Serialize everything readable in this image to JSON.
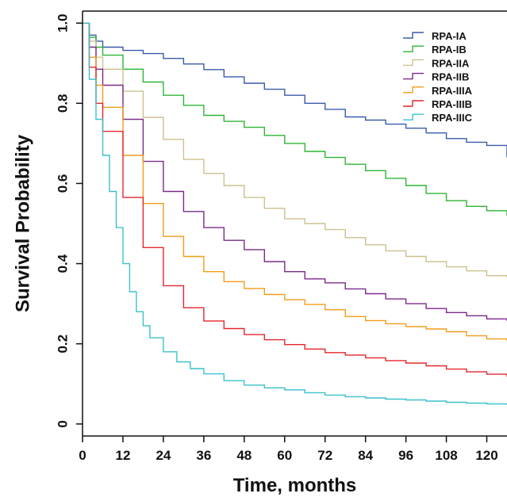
{
  "chart_data": {
    "type": "line",
    "title": "",
    "xlabel": "Time, months",
    "ylabel": "Survival Probability",
    "xlim": [
      0,
      126
    ],
    "ylim": [
      -0.03,
      1.03
    ],
    "xticks": [
      0,
      12,
      24,
      36,
      48,
      60,
      72,
      84,
      96,
      108,
      120
    ],
    "xtick_labels": [
      "0",
      "12",
      "24",
      "36",
      "48",
      "60",
      "72",
      "84",
      "96",
      "108",
      "120"
    ],
    "yticks": [
      0,
      0.2,
      0.4,
      0.6,
      0.8,
      1.0
    ],
    "ytick_labels": [
      "0",
      "0.2",
      "0.4",
      "0.6",
      "0.8",
      "1.0"
    ],
    "grid": false,
    "legend_position": "top-right",
    "series": [
      {
        "name": "RPA-IA",
        "color": "#3a5bab",
        "x": [
          0,
          2,
          4,
          6,
          12,
          18,
          24,
          30,
          36,
          42,
          48,
          54,
          60,
          66,
          72,
          78,
          84,
          90,
          96,
          102,
          108,
          114,
          120,
          126
        ],
        "y": [
          1.0,
          0.97,
          0.955,
          0.94,
          0.932,
          0.924,
          0.912,
          0.898,
          0.884,
          0.866,
          0.85,
          0.835,
          0.82,
          0.8,
          0.785,
          0.766,
          0.758,
          0.748,
          0.738,
          0.726,
          0.712,
          0.703,
          0.695,
          0.665
        ]
      },
      {
        "name": "RPA-IB",
        "color": "#2db534",
        "x": [
          0,
          2,
          4,
          6,
          12,
          18,
          24,
          30,
          36,
          42,
          48,
          54,
          60,
          66,
          72,
          78,
          84,
          90,
          96,
          102,
          108,
          114,
          120,
          126
        ],
        "y": [
          1.0,
          0.965,
          0.94,
          0.92,
          0.885,
          0.853,
          0.82,
          0.795,
          0.77,
          0.755,
          0.74,
          0.72,
          0.7,
          0.68,
          0.665,
          0.648,
          0.632,
          0.613,
          0.595,
          0.575,
          0.557,
          0.543,
          0.532,
          0.52
        ]
      },
      {
        "name": "RPA-IIA",
        "color": "#cdc08f",
        "x": [
          0,
          2,
          4,
          6,
          12,
          18,
          24,
          30,
          36,
          42,
          48,
          54,
          60,
          66,
          72,
          78,
          84,
          90,
          96,
          102,
          108,
          114,
          120,
          126
        ],
        "y": [
          1.0,
          0.955,
          0.915,
          0.885,
          0.83,
          0.765,
          0.71,
          0.66,
          0.625,
          0.595,
          0.565,
          0.538,
          0.512,
          0.5,
          0.485,
          0.465,
          0.447,
          0.432,
          0.418,
          0.405,
          0.392,
          0.382,
          0.37,
          0.365
        ]
      },
      {
        "name": "RPA-IIB",
        "color": "#7b2a8a",
        "x": [
          0,
          2,
          4,
          6,
          12,
          18,
          24,
          30,
          36,
          42,
          48,
          54,
          60,
          66,
          72,
          78,
          84,
          90,
          96,
          102,
          108,
          114,
          120,
          126
        ],
        "y": [
          1.0,
          0.94,
          0.885,
          0.845,
          0.76,
          0.655,
          0.58,
          0.53,
          0.49,
          0.458,
          0.435,
          0.405,
          0.38,
          0.362,
          0.352,
          0.337,
          0.325,
          0.312,
          0.3,
          0.288,
          0.278,
          0.27,
          0.262,
          0.257
        ]
      },
      {
        "name": "RPA-IIIA",
        "color": "#f39c1a",
        "x": [
          0,
          2,
          4,
          6,
          12,
          18,
          24,
          30,
          36,
          42,
          48,
          54,
          60,
          66,
          72,
          78,
          84,
          90,
          96,
          102,
          108,
          114,
          120,
          126
        ],
        "y": [
          1.0,
          0.915,
          0.845,
          0.79,
          0.67,
          0.55,
          0.468,
          0.418,
          0.38,
          0.355,
          0.338,
          0.323,
          0.31,
          0.298,
          0.285,
          0.268,
          0.258,
          0.25,
          0.243,
          0.237,
          0.23,
          0.22,
          0.212,
          0.207
        ]
      },
      {
        "name": "RPA-IIIB",
        "color": "#e3262e",
        "x": [
          0,
          2,
          4,
          6,
          12,
          18,
          24,
          30,
          36,
          42,
          48,
          54,
          60,
          66,
          72,
          78,
          84,
          90,
          96,
          102,
          108,
          114,
          120,
          126
        ],
        "y": [
          1.0,
          0.89,
          0.8,
          0.73,
          0.565,
          0.44,
          0.345,
          0.29,
          0.257,
          0.238,
          0.223,
          0.21,
          0.198,
          0.187,
          0.178,
          0.172,
          0.165,
          0.158,
          0.152,
          0.145,
          0.137,
          0.13,
          0.124,
          0.118
        ]
      },
      {
        "name": "RPA-IIIC",
        "color": "#3cc1cc",
        "x": [
          0,
          2,
          4,
          6,
          8,
          10,
          12,
          14,
          16,
          18,
          20,
          24,
          28,
          32,
          36,
          42,
          48,
          54,
          60,
          66,
          72,
          78,
          84,
          90,
          96,
          102,
          108,
          114,
          120,
          126
        ],
        "y": [
          1.0,
          0.86,
          0.76,
          0.67,
          0.58,
          0.49,
          0.4,
          0.33,
          0.28,
          0.245,
          0.215,
          0.18,
          0.155,
          0.138,
          0.125,
          0.108,
          0.097,
          0.09,
          0.085,
          0.078,
          0.072,
          0.068,
          0.065,
          0.062,
          0.06,
          0.057,
          0.054,
          0.052,
          0.05,
          0.048
        ]
      }
    ]
  }
}
